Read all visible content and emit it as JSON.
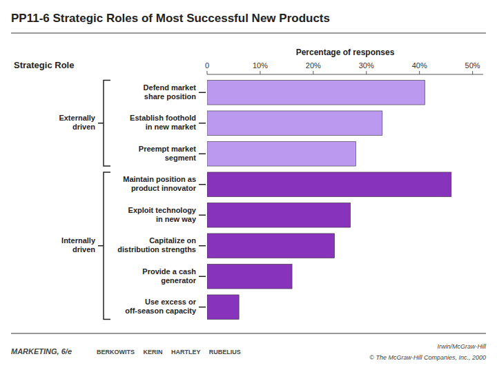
{
  "chart_data": {
    "type": "bar",
    "orientation": "horizontal",
    "title": "PP11-6  Strategic Roles of Most Successful New Products",
    "xlabel": "Percentage of responses",
    "categories": [
      "Defend market\nshare position",
      "Establish foothold\nin new market",
      "Preempt market\nsegment",
      "Maintain position as\nproduct innovator",
      "Exploit technology\nin new way",
      "Capitalize on\ndistribution strengths",
      "Provide a cash\ngenerator",
      "Use excess or\noff-season capacity"
    ],
    "values": [
      41,
      33,
      28,
      46,
      27,
      24,
      16,
      6
    ],
    "colors": [
      "#BB99EE",
      "#BB99EE",
      "#BB99EE",
      "#8833BB",
      "#8833BB",
      "#8833BB",
      "#8833BB",
      "#8833BB"
    ],
    "xlim": [
      0,
      52
    ],
    "xticks": [
      0,
      {
        "value": 10,
        "label": "10%"
      },
      {
        "value": 20,
        "label": "20%"
      },
      {
        "value": 30,
        "label": "30%"
      },
      {
        "value": 40,
        "label": "40%"
      },
      {
        "value": 50,
        "label": "50%"
      }
    ],
    "grid": false,
    "annotations": {
      "header": "Strategic Role",
      "groups": [
        "Externally\ndriven",
        "Internally\ndriven"
      ],
      "footer": [
        "MARKETING, 6/e",
        "BERKOWITS     KERIN     HARTLEY     RUBELIUS",
        "Irwin/McGraw-Hill",
        "© The McGraw-Hill Companies, Inc., 2000"
      ]
    }
  }
}
